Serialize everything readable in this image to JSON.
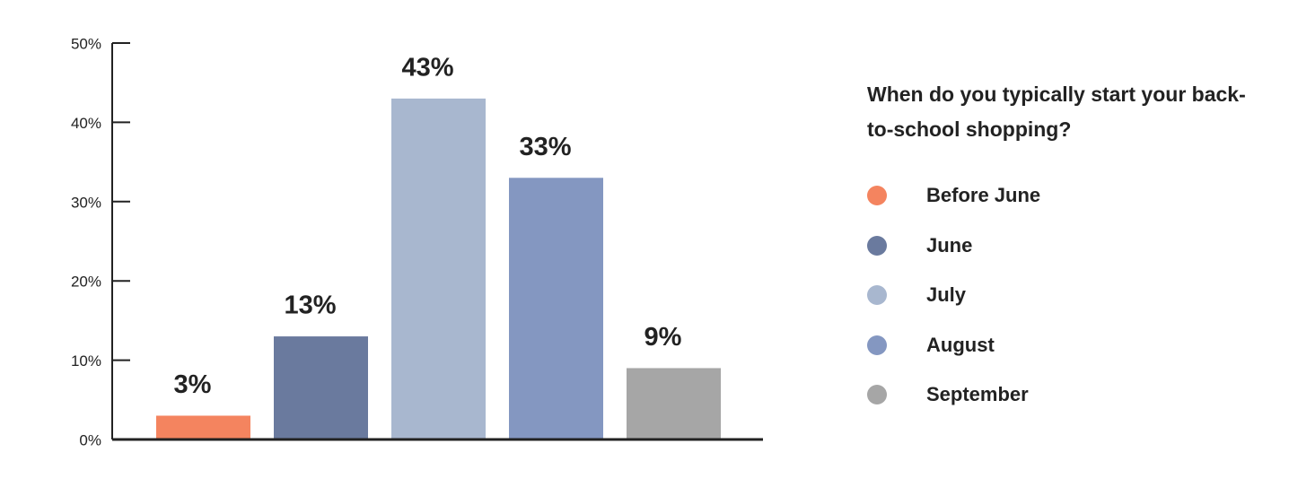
{
  "chart_data": {
    "type": "bar",
    "legend_title": "When do you typically start your back-to-school shopping?",
    "categories": [
      "Before June",
      "June",
      "July",
      "August",
      "September"
    ],
    "values": [
      3,
      13,
      43,
      33,
      9
    ],
    "value_labels": [
      "3%",
      "13%",
      "43%",
      "33%",
      "9%"
    ],
    "colors": [
      "#f4845f",
      "#6a7a9e",
      "#a8b7cf",
      "#8497c1",
      "#a6a6a6"
    ],
    "ylim": [
      0,
      50
    ],
    "yticks": [
      {
        "value": 0,
        "label": "0%"
      },
      {
        "value": 10,
        "label": "10%"
      },
      {
        "value": 20,
        "label": "20%"
      },
      {
        "value": 30,
        "label": "30%"
      },
      {
        "value": 40,
        "label": "40%"
      },
      {
        "value": 50,
        "label": "50%"
      }
    ],
    "legend": "right"
  }
}
